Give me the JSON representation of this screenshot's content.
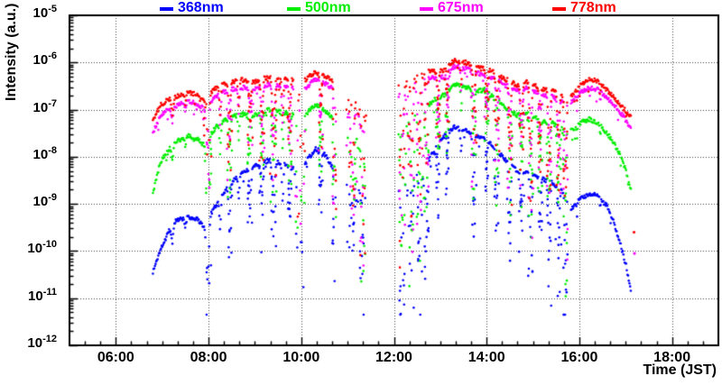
{
  "legend": {
    "items": [
      {
        "label": "368nm",
        "color": "#0000ff"
      },
      {
        "label": "500nm",
        "color": "#00ee00"
      },
      {
        "label": "675nm",
        "color": "#ff00ff"
      },
      {
        "label": "778nm",
        "color": "#ff0000"
      }
    ]
  },
  "axes": {
    "x": {
      "title": "Time (JST)",
      "range_hours": [
        5,
        19
      ],
      "major_tick_labels": [
        "06:00",
        "08:00",
        "10:00",
        "12:00",
        "14:00",
        "16:00",
        "18:00"
      ],
      "major_tick_hours": [
        6,
        8,
        10,
        12,
        14,
        16,
        18
      ],
      "minor_tick_minutes": 20
    },
    "y": {
      "title": "Intensity (a.u.)",
      "scale": "log",
      "tick_base": "10",
      "tick_exponents": [
        "-5",
        "-6",
        "-7",
        "-8",
        "-9",
        "-10",
        "-11",
        "-12"
      ]
    }
  },
  "chart_data": {
    "type": "scatter",
    "title": "",
    "xlabel": "Time (JST)",
    "ylabel": "Intensity (a.u.)",
    "xlim_hours": [
      5,
      19
    ],
    "ylog_range": [
      -12,
      -5
    ],
    "grid": "dotted at major ticks, both axes",
    "legend_position": "top",
    "marker": "small filled dot",
    "time_format": "x values are hours JST; y values are log10(intensity a.u.)",
    "segments": [
      [
        6.8,
        7.94,
        "dense"
      ],
      [
        8.03,
        9.84,
        "dense"
      ],
      [
        10.08,
        10.7,
        "dense"
      ],
      [
        10.98,
        11.4,
        "sparse"
      ],
      [
        12.1,
        12.75,
        "sparse"
      ],
      [
        12.75,
        15.75,
        "dense"
      ],
      [
        15.82,
        17.12,
        "dense"
      ]
    ],
    "dropouts": [
      {
        "t": 7.22,
        "w": 0.05,
        "depth": 0.35,
        "streak": 0
      },
      {
        "t": 7.5,
        "w": 0.04,
        "depth": 0.25,
        "streak": 0
      },
      {
        "t": 7.98,
        "w": 0.07,
        "depth": 1.4,
        "streak": 1
      },
      {
        "t": 8.25,
        "w": 0.04,
        "depth": 0.7,
        "streak": 0
      },
      {
        "t": 8.45,
        "w": 0.05,
        "depth": 1.3,
        "streak": 1
      },
      {
        "t": 8.65,
        "w": 0.04,
        "depth": 0.6,
        "streak": 0
      },
      {
        "t": 8.9,
        "w": 0.05,
        "depth": 1.1,
        "streak": 1
      },
      {
        "t": 9.15,
        "w": 0.05,
        "depth": 1.3,
        "streak": 1
      },
      {
        "t": 9.4,
        "w": 0.06,
        "depth": 1.7,
        "streak": 1
      },
      {
        "t": 9.6,
        "w": 0.04,
        "depth": 0.9,
        "streak": 0
      },
      {
        "t": 9.75,
        "w": 0.04,
        "depth": 1.2,
        "streak": 1
      },
      {
        "t": 9.97,
        "w": 0.09,
        "depth": 2.3,
        "streak": 1
      },
      {
        "t": 10.42,
        "w": 0.04,
        "depth": 1.2,
        "streak": 1
      },
      {
        "t": 10.72,
        "w": 0.04,
        "depth": 1.9,
        "streak": 1
      },
      {
        "t": 11.1,
        "w": 0.06,
        "depth": 1.6,
        "streak": 1
      },
      {
        "t": 11.32,
        "w": 0.05,
        "depth": 2.2,
        "streak": 1
      },
      {
        "t": 12.18,
        "w": 0.05,
        "depth": 2.6,
        "streak": 1
      },
      {
        "t": 12.38,
        "w": 0.05,
        "depth": 2.4,
        "streak": 1
      },
      {
        "t": 12.55,
        "w": 0.05,
        "depth": 2.2,
        "streak": 1
      },
      {
        "t": 12.7,
        "w": 0.04,
        "depth": 1.8,
        "streak": 1
      },
      {
        "t": 12.95,
        "w": 0.04,
        "depth": 1.2,
        "streak": 1
      },
      {
        "t": 13.15,
        "w": 0.03,
        "depth": 0.9,
        "streak": 1
      },
      {
        "t": 13.45,
        "w": 0.03,
        "depth": 0.6,
        "streak": 0
      },
      {
        "t": 13.72,
        "w": 0.05,
        "depth": 1.9,
        "streak": 1
      },
      {
        "t": 14.0,
        "w": 0.04,
        "depth": 0.9,
        "streak": 1
      },
      {
        "t": 14.22,
        "w": 0.05,
        "depth": 1.6,
        "streak": 1
      },
      {
        "t": 14.5,
        "w": 0.05,
        "depth": 1.9,
        "streak": 1
      },
      {
        "t": 14.75,
        "w": 0.05,
        "depth": 1.4,
        "streak": 1
      },
      {
        "t": 14.95,
        "w": 0.05,
        "depth": 2.1,
        "streak": 1
      },
      {
        "t": 15.15,
        "w": 0.04,
        "depth": 1.3,
        "streak": 1
      },
      {
        "t": 15.35,
        "w": 0.05,
        "depth": 2.2,
        "streak": 1
      },
      {
        "t": 15.55,
        "w": 0.05,
        "depth": 1.7,
        "streak": 1
      },
      {
        "t": 15.7,
        "w": 0.04,
        "depth": 2.4,
        "streak": 1
      },
      {
        "t": 15.95,
        "w": 0.02,
        "depth": 0.3,
        "streak": 0
      },
      {
        "t": 16.45,
        "w": 0.025,
        "depth": 0.25,
        "streak": 0
      }
    ],
    "series": [
      {
        "name": "368nm",
        "color": "#0000ff",
        "envelope": [
          [
            6.8,
            -10.45
          ],
          [
            6.95,
            -10.0
          ],
          [
            7.1,
            -9.65
          ],
          [
            7.3,
            -9.35
          ],
          [
            7.55,
            -9.27
          ],
          [
            7.75,
            -9.32
          ],
          [
            7.94,
            -9.5
          ],
          [
            8.03,
            -9.25
          ],
          [
            8.2,
            -8.95
          ],
          [
            8.45,
            -8.6
          ],
          [
            8.7,
            -8.35
          ],
          [
            9.0,
            -8.18
          ],
          [
            9.3,
            -8.08
          ],
          [
            9.6,
            -8.15
          ],
          [
            9.84,
            -8.25
          ],
          [
            10.08,
            -8.15
          ],
          [
            10.3,
            -7.82
          ],
          [
            10.5,
            -7.95
          ],
          [
            10.7,
            -8.25
          ],
          [
            10.98,
            -8.55
          ],
          [
            11.2,
            -8.65
          ],
          [
            11.4,
            -8.9
          ],
          [
            12.1,
            -8.65
          ],
          [
            12.4,
            -8.45
          ],
          [
            12.7,
            -8.15
          ],
          [
            12.9,
            -7.8
          ],
          [
            13.1,
            -7.55
          ],
          [
            13.3,
            -7.38
          ],
          [
            13.55,
            -7.45
          ],
          [
            13.75,
            -7.55
          ],
          [
            13.95,
            -7.6
          ],
          [
            14.15,
            -7.8
          ],
          [
            14.4,
            -8.05
          ],
          [
            14.65,
            -8.3
          ],
          [
            14.9,
            -8.3
          ],
          [
            15.15,
            -8.45
          ],
          [
            15.4,
            -8.55
          ],
          [
            15.6,
            -8.7
          ],
          [
            15.75,
            -8.9
          ],
          [
            15.82,
            -9.1
          ],
          [
            16.0,
            -8.92
          ],
          [
            16.2,
            -8.78
          ],
          [
            16.4,
            -8.83
          ],
          [
            16.6,
            -9.05
          ],
          [
            16.75,
            -9.4
          ],
          [
            16.9,
            -9.9
          ],
          [
            17.02,
            -10.35
          ],
          [
            17.13,
            -10.9
          ]
        ],
        "isolated": []
      },
      {
        "name": "500nm",
        "color": "#00ee00",
        "envelope": [
          [
            6.8,
            -8.78
          ],
          [
            6.95,
            -8.15
          ],
          [
            7.1,
            -7.88
          ],
          [
            7.3,
            -7.68
          ],
          [
            7.55,
            -7.55
          ],
          [
            7.75,
            -7.62
          ],
          [
            7.94,
            -7.78
          ],
          [
            8.03,
            -7.55
          ],
          [
            8.2,
            -7.32
          ],
          [
            8.45,
            -7.18
          ],
          [
            8.7,
            -7.1
          ],
          [
            9.0,
            -7.12
          ],
          [
            9.3,
            -7.0
          ],
          [
            9.6,
            -7.05
          ],
          [
            9.84,
            -7.12
          ],
          [
            10.08,
            -7.12
          ],
          [
            10.3,
            -6.9
          ],
          [
            10.5,
            -7.0
          ],
          [
            10.7,
            -7.18
          ],
          [
            10.98,
            -7.45
          ],
          [
            11.2,
            -7.55
          ],
          [
            11.4,
            -7.75
          ],
          [
            12.1,
            -7.35
          ],
          [
            12.4,
            -7.15
          ],
          [
            12.7,
            -6.95
          ],
          [
            12.9,
            -6.78
          ],
          [
            13.1,
            -6.68
          ],
          [
            13.3,
            -6.45
          ],
          [
            13.55,
            -6.52
          ],
          [
            13.75,
            -6.62
          ],
          [
            13.95,
            -6.58
          ],
          [
            14.15,
            -6.75
          ],
          [
            14.4,
            -6.95
          ],
          [
            14.65,
            -7.12
          ],
          [
            14.9,
            -7.05
          ],
          [
            15.15,
            -7.22
          ],
          [
            15.4,
            -7.28
          ],
          [
            15.6,
            -7.38
          ],
          [
            15.75,
            -7.48
          ],
          [
            15.82,
            -7.45
          ],
          [
            16.0,
            -7.3
          ],
          [
            16.2,
            -7.2
          ],
          [
            16.4,
            -7.28
          ],
          [
            16.6,
            -7.5
          ],
          [
            16.75,
            -7.72
          ],
          [
            16.9,
            -8.0
          ],
          [
            17.02,
            -8.35
          ],
          [
            17.1,
            -8.72
          ]
        ],
        "isolated": []
      },
      {
        "name": "675nm",
        "color": "#ff00ff",
        "envelope": [
          [
            6.8,
            -7.5
          ],
          [
            6.95,
            -7.15
          ],
          [
            7.1,
            -7.0
          ],
          [
            7.3,
            -6.92
          ],
          [
            7.55,
            -6.82
          ],
          [
            7.75,
            -6.88
          ],
          [
            7.94,
            -7.0
          ],
          [
            8.03,
            -6.85
          ],
          [
            8.2,
            -6.68
          ],
          [
            8.45,
            -6.58
          ],
          [
            8.7,
            -6.53
          ],
          [
            9.0,
            -6.56
          ],
          [
            9.3,
            -6.46
          ],
          [
            9.6,
            -6.5
          ],
          [
            9.84,
            -6.55
          ],
          [
            10.08,
            -6.55
          ],
          [
            10.3,
            -6.35
          ],
          [
            10.5,
            -6.43
          ],
          [
            10.7,
            -6.58
          ],
          [
            10.98,
            -6.9
          ],
          [
            11.2,
            -7.0
          ],
          [
            11.4,
            -7.15
          ],
          [
            12.1,
            -6.6
          ],
          [
            12.4,
            -6.45
          ],
          [
            12.7,
            -6.3
          ],
          [
            12.9,
            -6.35
          ],
          [
            13.1,
            -6.3
          ],
          [
            13.3,
            -6.08
          ],
          [
            13.55,
            -6.12
          ],
          [
            13.75,
            -6.22
          ],
          [
            13.95,
            -6.26
          ],
          [
            14.15,
            -6.33
          ],
          [
            14.4,
            -6.48
          ],
          [
            14.65,
            -6.6
          ],
          [
            14.9,
            -6.53
          ],
          [
            15.15,
            -6.68
          ],
          [
            15.4,
            -6.72
          ],
          [
            15.6,
            -6.8
          ],
          [
            15.75,
            -6.92
          ],
          [
            15.82,
            -6.85
          ],
          [
            16.0,
            -6.65
          ],
          [
            16.2,
            -6.53
          ],
          [
            16.4,
            -6.58
          ],
          [
            16.6,
            -6.75
          ],
          [
            16.75,
            -6.9
          ],
          [
            16.9,
            -7.08
          ],
          [
            17.02,
            -7.25
          ],
          [
            17.1,
            -7.38
          ]
        ],
        "isolated": [
          [
            17.19,
            -10.05
          ]
        ]
      },
      {
        "name": "778nm",
        "color": "#ff0000",
        "envelope": [
          [
            6.8,
            -7.25
          ],
          [
            6.95,
            -6.92
          ],
          [
            7.1,
            -6.8
          ],
          [
            7.3,
            -6.73
          ],
          [
            7.55,
            -6.63
          ],
          [
            7.75,
            -6.68
          ],
          [
            7.94,
            -6.8
          ],
          [
            8.03,
            -6.65
          ],
          [
            8.2,
            -6.5
          ],
          [
            8.45,
            -6.42
          ],
          [
            8.7,
            -6.37
          ],
          [
            9.0,
            -6.4
          ],
          [
            9.3,
            -6.3
          ],
          [
            9.6,
            -6.34
          ],
          [
            9.84,
            -6.38
          ],
          [
            10.08,
            -6.38
          ],
          [
            10.3,
            -6.2
          ],
          [
            10.5,
            -6.28
          ],
          [
            10.7,
            -6.42
          ],
          [
            10.98,
            -6.72
          ],
          [
            11.2,
            -6.82
          ],
          [
            11.4,
            -7.0
          ],
          [
            12.1,
            -6.45
          ],
          [
            12.4,
            -6.3
          ],
          [
            12.7,
            -6.15
          ],
          [
            12.9,
            -6.2
          ],
          [
            13.1,
            -6.15
          ],
          [
            13.3,
            -5.96
          ],
          [
            13.55,
            -6.0
          ],
          [
            13.75,
            -6.1
          ],
          [
            13.95,
            -6.14
          ],
          [
            14.15,
            -6.2
          ],
          [
            14.4,
            -6.35
          ],
          [
            14.65,
            -6.48
          ],
          [
            14.9,
            -6.4
          ],
          [
            15.15,
            -6.55
          ],
          [
            15.4,
            -6.6
          ],
          [
            15.6,
            -6.68
          ],
          [
            15.75,
            -6.8
          ],
          [
            15.82,
            -6.72
          ],
          [
            16.0,
            -6.5
          ],
          [
            16.2,
            -6.35
          ],
          [
            16.4,
            -6.4
          ],
          [
            16.6,
            -6.58
          ],
          [
            16.75,
            -6.75
          ],
          [
            16.9,
            -6.92
          ],
          [
            17.02,
            -7.05
          ],
          [
            17.1,
            -7.15
          ]
        ],
        "isolated": [
          [
            17.18,
            -9.6
          ]
        ]
      }
    ]
  }
}
